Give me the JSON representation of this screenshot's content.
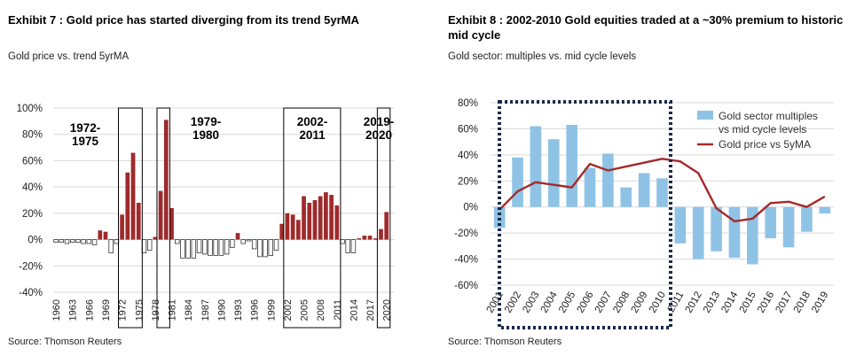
{
  "colors": {
    "bar_positive": "#9e2a2b",
    "bar_negative": "#ffffff",
    "bar_outline": "#1a1a1a",
    "bar_blue": "#8fc3e6",
    "line_red": "#a52a2a",
    "grid": "#d9d9d9",
    "box": "#000000",
    "dotted_box": "#1b2a4a"
  },
  "left": {
    "title": "Exhibit 7 : Gold price has started diverging from its trend 5yrMA",
    "subtitle": "Gold price vs. trend 5yrMA",
    "source": "Source: Thomson Reuters"
  },
  "right": {
    "title": "Exhibit 8 : 2002-2010 Gold equities traded at a ~30% premium to historic mid cycle",
    "subtitle": "Gold sector: multiples vs. mid cycle levels",
    "source": "Source: Thomson Reuters"
  },
  "chart_data": [
    {
      "type": "bar",
      "title": "Exhibit 7 : Gold price has started diverging from its trend 5yrMA",
      "subtitle": "Gold price vs. trend 5yrMA",
      "x_start": 1960,
      "x_end": 2021,
      "x_tick_labels": [
        "1960",
        "1963",
        "1966",
        "1969",
        "1972",
        "1975",
        "1978",
        "1981",
        "1984",
        "1987",
        "1990",
        "1993",
        "1996",
        "1999",
        "2002",
        "2005",
        "2008",
        "2011",
        "2014",
        "2017",
        "2020"
      ],
      "values": [
        -2,
        -2,
        -3,
        -2,
        -2,
        -3,
        -3,
        -4,
        7,
        6,
        -10,
        -3,
        19,
        51,
        66,
        28,
        -10,
        -8,
        2,
        37,
        91,
        24,
        -3,
        -14,
        -14,
        -14,
        -10,
        -11,
        -12,
        -12,
        -12,
        -11,
        -6,
        5,
        -3,
        -1,
        -7,
        -13,
        -13,
        -12,
        -8,
        12,
        20,
        19,
        15,
        33,
        28,
        30,
        33,
        36,
        34,
        26,
        -3,
        -10,
        -10,
        1,
        3,
        3,
        1,
        8,
        21,
        0
      ],
      "ylim": [
        -40,
        100
      ],
      "y_ticks": [
        -40,
        -20,
        0,
        20,
        40,
        60,
        80,
        100
      ],
      "y_tick_labels": [
        "-40%",
        "-20%",
        "0%",
        "20%",
        "40%",
        "60%",
        "80%",
        "100%"
      ],
      "annotations": [
        {
          "label_lines": [
            "1972-",
            "1975"
          ],
          "from_year": 1972,
          "to_year": 1975
        },
        {
          "label_lines": [
            "1979-",
            "1980"
          ],
          "from_year": 1979,
          "to_year": 1980
        },
        {
          "label_lines": [
            "2002-",
            "2011"
          ],
          "from_year": 2002,
          "to_year": 2011
        },
        {
          "label_lines": [
            "2019-",
            "2020"
          ],
          "from_year": 2019,
          "to_year": 2020
        }
      ]
    },
    {
      "type": "bar",
      "title": "Exhibit 8 : 2002-2010 Gold equities traded at a ~30% premium to historic mid cycle",
      "subtitle": "Gold sector: multiples vs. mid cycle levels",
      "categories": [
        "2001",
        "2002",
        "2003",
        "2004",
        "2005",
        "2006",
        "2007",
        "2008",
        "2009",
        "2010",
        "2011",
        "2012",
        "2013",
        "2014",
        "2015",
        "2016",
        "2017",
        "2018",
        "2019"
      ],
      "series": [
        {
          "name": "Gold sector multiples vs mid cycle levels",
          "kind": "bar",
          "values": [
            -16,
            38,
            62,
            52,
            63,
            30,
            41,
            15,
            26,
            22,
            -28,
            -40,
            -34,
            -39,
            -44,
            -24,
            -31,
            -19,
            -5
          ]
        },
        {
          "name": "Gold price vs 5yMA",
          "kind": "line",
          "values": [
            -2,
            12,
            19,
            17,
            15,
            33,
            28,
            31,
            34,
            37,
            35,
            26,
            -1,
            -11,
            -9,
            3,
            4,
            0,
            8
          ]
        }
      ],
      "ylim": [
        -60,
        80
      ],
      "y_ticks": [
        -60,
        -40,
        -20,
        0,
        20,
        40,
        60,
        80
      ],
      "y_tick_labels": [
        "-60%",
        "-40%",
        "-20%",
        "0%",
        "20%",
        "40%",
        "60%",
        "80%"
      ],
      "legend_position": "top-right",
      "highlight": {
        "from": "2001",
        "to": "2010"
      }
    }
  ]
}
